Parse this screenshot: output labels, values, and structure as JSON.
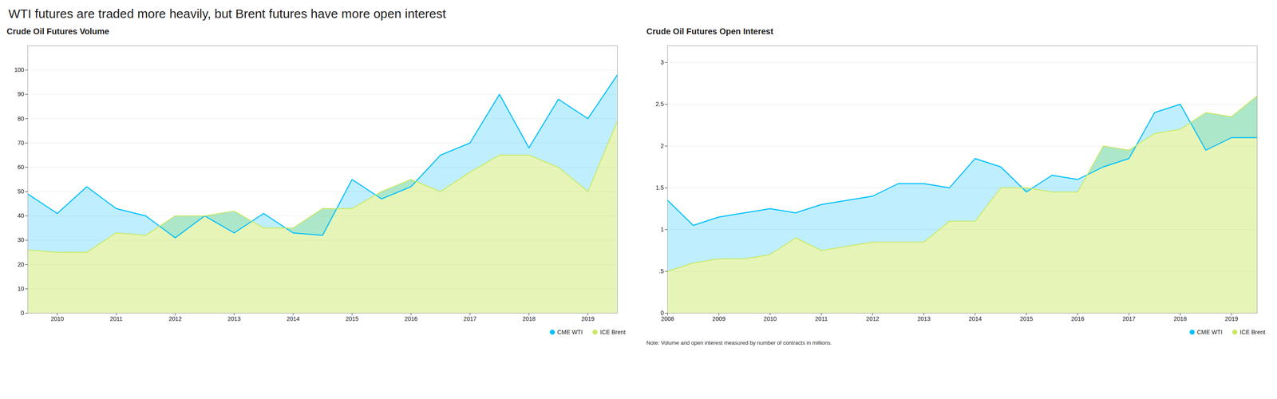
{
  "title": "WTI futures are traded more heavily, but Brent futures have more open interest",
  "annotations": [
    "Note: Volume and open interest measured by number of contracts in millions."
  ],
  "chart_data": [
    {
      "type": "area",
      "title": "Crude Oil Futures Volume",
      "x": [
        2009.5,
        2010.0,
        2010.5,
        2011.0,
        2011.5,
        2012.0,
        2012.5,
        2013.0,
        2013.5,
        2014.0,
        2014.5,
        2015.0,
        2015.5,
        2016.0,
        2016.5,
        2017.0,
        2017.5,
        2018.0,
        2018.5,
        2019.0,
        2019.5
      ],
      "series": [
        {
          "name": "CME WTI",
          "color": "#00bfff",
          "values": [
            49,
            41,
            52,
            43,
            40,
            31,
            40,
            33,
            41,
            33,
            32,
            55,
            47,
            52,
            65,
            70,
            90,
            68,
            88,
            80,
            98
          ]
        },
        {
          "name": "ICE Brent",
          "color": "#c8e860",
          "values": [
            26,
            25,
            25,
            33,
            32,
            40,
            40,
            42,
            35,
            35,
            43,
            43,
            50,
            55,
            50,
            58,
            65,
            65,
            60,
            50,
            79
          ]
        }
      ],
      "xlim": [
        2009.5,
        2019.5
      ],
      "xticks": [
        2010,
        2011,
        2012,
        2013,
        2014,
        2015,
        2016,
        2017,
        2018,
        2019
      ],
      "ylim": [
        0,
        110
      ],
      "yticks": [
        0,
        10,
        20,
        30,
        40,
        50,
        60,
        70,
        80,
        90,
        100
      ],
      "grid": true,
      "legend": "lower right"
    },
    {
      "type": "area",
      "title": "Crude Oil Futures Open Interest",
      "x": [
        2008.0,
        2008.5,
        2009.0,
        2009.5,
        2010.0,
        2010.5,
        2011.0,
        2011.5,
        2012.0,
        2012.5,
        2013.0,
        2013.5,
        2014.0,
        2014.5,
        2015.0,
        2015.5,
        2016.0,
        2016.5,
        2017.0,
        2017.5,
        2018.0,
        2018.5,
        2019.0,
        2019.5
      ],
      "series": [
        {
          "name": "CME WTI",
          "color": "#00bfff",
          "values": [
            1.35,
            1.05,
            1.15,
            1.2,
            1.25,
            1.2,
            1.3,
            1.35,
            1.4,
            1.55,
            1.55,
            1.5,
            1.85,
            1.75,
            1.45,
            1.65,
            1.6,
            1.75,
            1.85,
            2.4,
            2.5,
            1.95,
            2.1,
            2.1
          ]
        },
        {
          "name": "ICE Brent",
          "color": "#c8e860",
          "values": [
            0.5,
            0.6,
            0.65,
            0.65,
            0.7,
            0.9,
            0.75,
            0.8,
            0.85,
            0.85,
            0.85,
            1.1,
            1.1,
            1.5,
            1.5,
            1.45,
            1.45,
            2.0,
            1.95,
            2.15,
            2.2,
            2.4,
            2.35,
            2.6
          ]
        }
      ],
      "xlim": [
        2008.0,
        2019.5
      ],
      "xticks": [
        2008,
        2009,
        2010,
        2011,
        2012,
        2013,
        2014,
        2015,
        2016,
        2017,
        2018,
        2019
      ],
      "ylim": [
        0,
        3.2
      ],
      "yticks": [
        0,
        {
          "value": 0.5,
          "label": ".5"
        },
        1,
        1.5,
        2,
        2.5,
        3
      ],
      "grid": true,
      "legend": "lower right"
    }
  ]
}
